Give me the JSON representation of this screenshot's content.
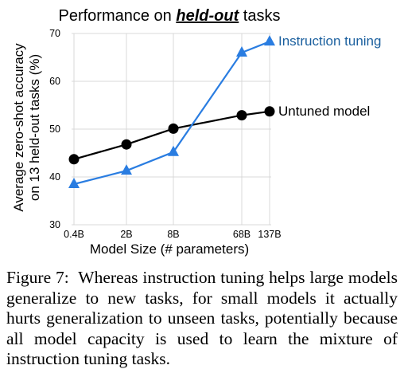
{
  "chart_data": {
    "type": "line",
    "title_prefix": "Performance on ",
    "title_emphasis": "held-out",
    "title_suffix": " tasks",
    "xlabel": "Model Size (# parameters)",
    "ylabel_line1": "Average zero-shot accuracy",
    "ylabel_line2": "on 13 held-out tasks (%)",
    "categories": [
      "0.4B",
      "2B",
      "8B",
      "68B",
      "137B"
    ],
    "ylim": [
      30,
      70
    ],
    "yticks": [
      30,
      40,
      50,
      60,
      70
    ],
    "grid": true,
    "series": [
      {
        "name": "Instruction tuning",
        "color": "#2a7de1",
        "text_color": "#1a5f9e",
        "marker": "triangle",
        "values": [
          38.5,
          41.3,
          45.2,
          66.0,
          68.3
        ]
      },
      {
        "name": "Untuned model",
        "color": "#000000",
        "text_color": "#000000",
        "marker": "circle",
        "values": [
          43.7,
          46.8,
          50.1,
          52.9,
          53.7
        ]
      }
    ]
  },
  "caption": {
    "label": "Figure 7:",
    "text": "Whereas instruction tuning helps large models generalize to new tasks, for small models it actually hurts generalization to unseen tasks, potentially because all model capacity is used to learn the mixture of instruction tuning tasks."
  }
}
